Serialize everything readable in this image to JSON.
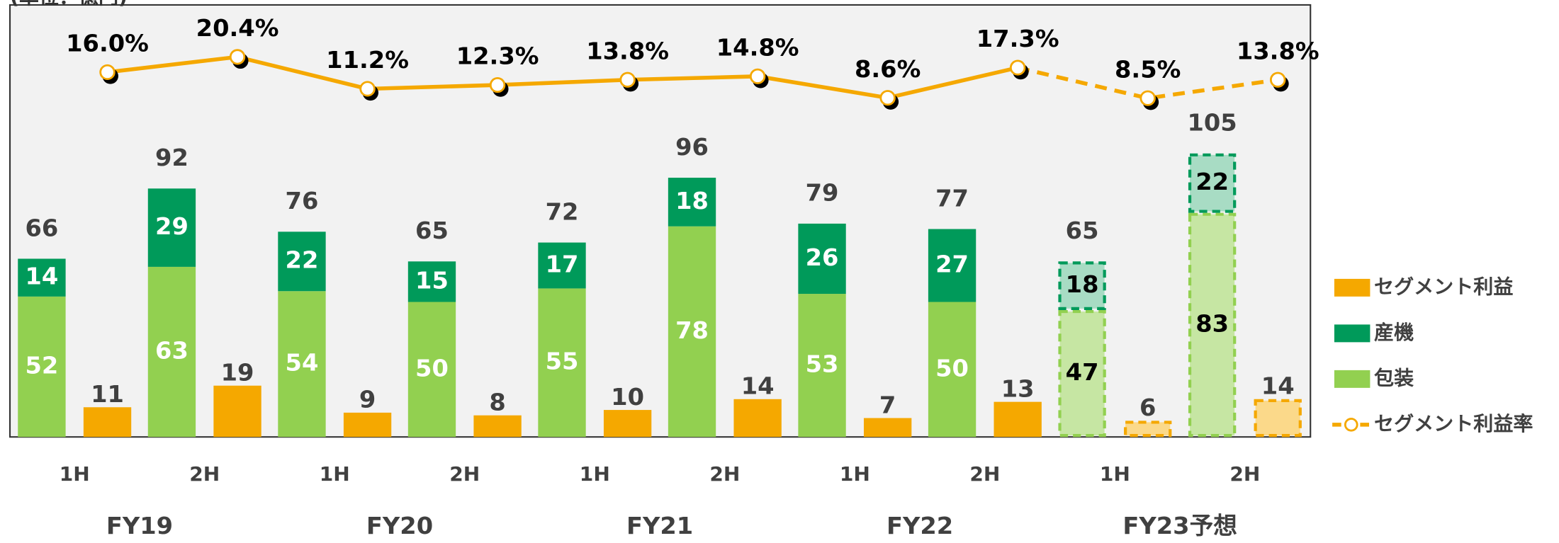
{
  "chart_data": {
    "type": "bar",
    "unit_label": "(単位：億円)",
    "categories": [
      "1H",
      "2H",
      "1H",
      "2H",
      "1H",
      "2H",
      "1H",
      "2H",
      "1H",
      "2H"
    ],
    "groups": [
      "FY19",
      "FY20",
      "FY21",
      "FY22",
      "FY23予想"
    ],
    "forecast": [
      false,
      false,
      false,
      false,
      false,
      false,
      false,
      false,
      true,
      true
    ],
    "series": [
      {
        "name": "包装",
        "color": "#92d050",
        "forecast_color": "#c6e6a3",
        "values": [
          52,
          63,
          54,
          50,
          55,
          78,
          53,
          50,
          47,
          83
        ]
      },
      {
        "name": "産機",
        "color": "#009a5a",
        "forecast_color": "#a8dcc4",
        "values": [
          14,
          29,
          22,
          15,
          17,
          18,
          26,
          27,
          18,
          22
        ]
      },
      {
        "name": "セグメント利益",
        "color": "#f5a800",
        "forecast_color": "#fbd98a",
        "values": [
          11,
          19,
          9,
          8,
          10,
          14,
          7,
          13,
          6,
          14
        ]
      },
      {
        "name": "セグメント利益率",
        "color": "#f5a800",
        "axis": "y2",
        "values": [
          16.0,
          20.4,
          11.2,
          12.3,
          13.8,
          14.8,
          8.6,
          17.3,
          8.5,
          13.8
        ],
        "value_labels": [
          "16.0%",
          "20.4%",
          "11.2%",
          "12.3%",
          "13.8%",
          "14.8%",
          "8.6%",
          "17.3%",
          "8.5%",
          "13.8%"
        ]
      }
    ],
    "totals": [
      66,
      92,
      76,
      65,
      72,
      96,
      79,
      77,
      65,
      105
    ],
    "ylim": [
      0,
      160
    ],
    "y2lim": [
      -89.2,
      35.4
    ]
  }
}
